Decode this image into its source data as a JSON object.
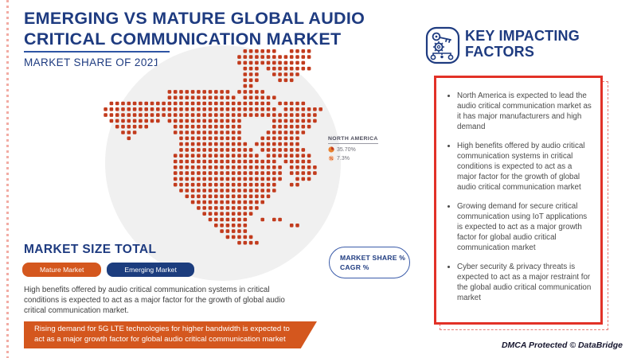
{
  "header": {
    "title_line1": "EMERGING VS MATURE GLOBAL AUDIO",
    "title_line2": "CRITICAL COMMUNICATION MARKET",
    "subtitle": "MARKET SHARE OF 2021"
  },
  "colors": {
    "navy": "#1e3b80",
    "orange": "#d4571e",
    "dot_red": "#c23b1d",
    "box_red": "#e23127"
  },
  "map_callout": {
    "region": "NORTH AMERICA",
    "market_share": "35.70%",
    "cagr": "7.3%",
    "pie_icon": "pie-chart-icon",
    "cagr_icon": "percent-icon"
  },
  "badge": {
    "line1": "MARKET SHARE %",
    "line2": "CAGR %"
  },
  "market_size": {
    "heading": "MARKET SIZE TOTAL",
    "legend": [
      {
        "label": "Mature Market",
        "color": "#d4571e"
      },
      {
        "label": "Emerging Market",
        "color": "#1c3d7e"
      }
    ]
  },
  "paragraph": "High benefits offered by audio critical communication systems in critical conditions is expected to act as a major factor for the growth of global audio critical communication market.",
  "banner": "Rising demand for 5G LTE technologies for higher bandwidth is expected to act as a major growth factor for global audio critical communication market",
  "factors": {
    "icon": "key-impacting-icon",
    "title_line1": "KEY IMPACTING",
    "title_line2": "FACTORS",
    "items": [
      "North America is expected to lead the audio critical communication market as it has major manufacturers and high demand",
      "High benefits offered by audio critical communication systems in critical conditions is expected to act as a major factor for the growth of global audio critical communication market",
      "Growing demand for secure critical communication using IoT applications is expected to act as a major growth factor for global audio critical communication market",
      "Cyber security & privacy threats is expected to act as a major restraint for the global audio critical communication market"
    ]
  },
  "footer": "DMCA Protected © DataBridge",
  "chart_data": {
    "type": "heatmap",
    "subtype": "dot-density-map",
    "title": "Emerging vs Mature Global Audio Critical Communication Market",
    "subtitle": "Market Share of 2021",
    "regions": [
      {
        "name": "North America",
        "market_share_pct": 35.7,
        "cagr_pct": 7.3
      }
    ],
    "legend_entries": [
      "Mature Market",
      "Emerging Market"
    ],
    "legend_position": "bottom-left",
    "dot_color": "#c23b1d",
    "dot_rows": [
      ".........................XXXXXX..XXXX...",
      "........................XXXXXXXXXXXXX...",
      "........................XXXXXXXXXXXX....",
      ".........................XXX.XXXXXXXX...",
      ".........................XXX..XXXXX.....",
      ".........................XXX...XXX......",
      ".........................XX.............",
      "............XXXXXXXXXXX.XXXXX...........",
      "............XXXXXXXXXXXX.XXXXXX.........",
      "..XXXXXXXXXXXXXXXXXXXXXXXXXXXX.XXXXX....",
      ".XXXXXXXXXXXXXXXXXXXXXXXXXXXXXX.XXXXXXX.",
      ".XXXXXXXXXXXXXXXXXXXXXXXXXXXXXXXXXXXXX.",
      "..XXXXXXXXX.XXXXXXXXXXXXX.....XXXXXXXX..",
      "...XXXXXX....XXXXXXXXXXXX.....XXXXXXX...",
      "....XXX......XXXXXXXXXXXX....XXXXXXX....",
      ".....X........XXXXXXXXXXX...XXXXXXX.....",
      "..............XXXXXXXXXXXX.XXXXXXXX.....",
      "..............XXXXXXXXXXXXX.XXXXXXXX....",
      ".............XXXXXXXXXXXXXXX.XXXXXXXX...",
      ".............XXXXXXXXXXXXXXXXXX.XXXXX...",
      ".............XXXXXXXXXXXXXXXXXXX.XXXXX..",
      ".............XXXXXXXXXXXXXXXXXXX.XXXXX..",
      ".............XXXXXXXXXXXXXXXXXXX..XXX...",
      ".............XXXXXXXXXXXXXXXXXX..XX.....",
      "..............XXXXXXXXXXXXXXXXX.........",
      "...............XXXXXXXXXXXXXXX..........",
      "................XXXXXXXXXXXXX...........",
      ".................XXXXXXXXXXX............",
      "..................XXXXXXXXX.............",
      "...................XXXXXXX..X.XX........",
      "....................XXXXXX.......XX.....",
      ".....................XXXXX..............",
      "......................XXXXX.............",
      "........................XXXX............"
    ]
  }
}
